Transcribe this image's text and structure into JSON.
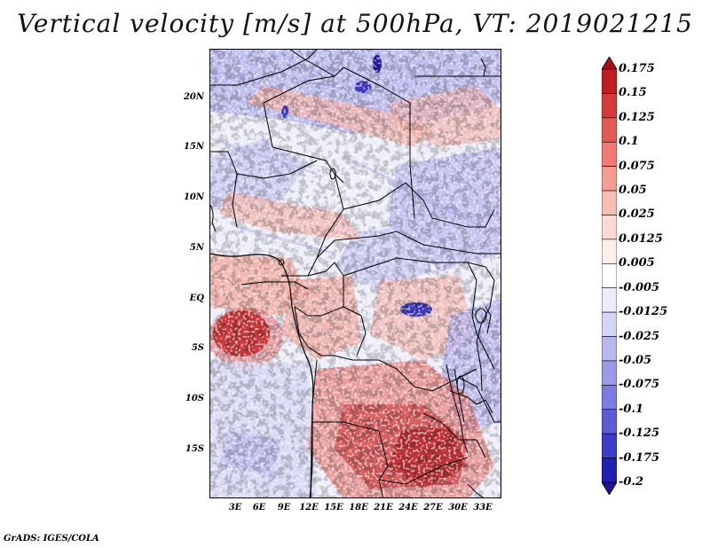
{
  "title": "Vertical velocity [m/s] at 500hPa, VT: 2019021215",
  "footer": "GrADS: IGES/COLA",
  "map": {
    "lat_ticks": [
      "20N",
      "15N",
      "10N",
      "5N",
      "EQ",
      "5S",
      "10S",
      "15S"
    ],
    "lon_ticks": [
      "3E",
      "6E",
      "9E",
      "12E",
      "15E",
      "18E",
      "21E",
      "24E",
      "27E",
      "30E",
      "33E"
    ],
    "regions": [
      {
        "name": "Sahara north (weak ascent/descent mix)",
        "sign": "negative"
      },
      {
        "name": "Gulf of Guinea offshore maximum near 4S 3E",
        "sign": "positive"
      },
      {
        "name": "Lake Victoria minimum near 1S 25E",
        "sign": "negative"
      },
      {
        "name": "Southern Africa maximum 10S-17S",
        "sign": "positive"
      }
    ]
  },
  "colorbar": {
    "levels": [
      "0.175",
      "0.15",
      "0.125",
      "0.1",
      "0.075",
      "0.05",
      "0.025",
      "0.0125",
      "0.005",
      "-0.005",
      "-0.0125",
      "-0.025",
      "-0.05",
      "-0.075",
      "-0.1",
      "-0.125",
      "-0.175",
      "-0.2"
    ],
    "colors": [
      "#a50f15",
      "#c11d25",
      "#d73a3a",
      "#e55a55",
      "#ef7b72",
      "#f59d92",
      "#f9bdb3",
      "#fcd9d2",
      "#fdeeea",
      "#ffffff",
      "#ececfb",
      "#d4d4f6",
      "#b8b8f0",
      "#9a9ae8",
      "#7b7be0",
      "#5c5cd6",
      "#3c3cc6",
      "#2020b2",
      "#1a1496"
    ]
  },
  "colors": {
    "positive_max": "#a50f15",
    "negative_max": "#1a1496",
    "neutral": "#ffffff",
    "borders": "#000000"
  }
}
